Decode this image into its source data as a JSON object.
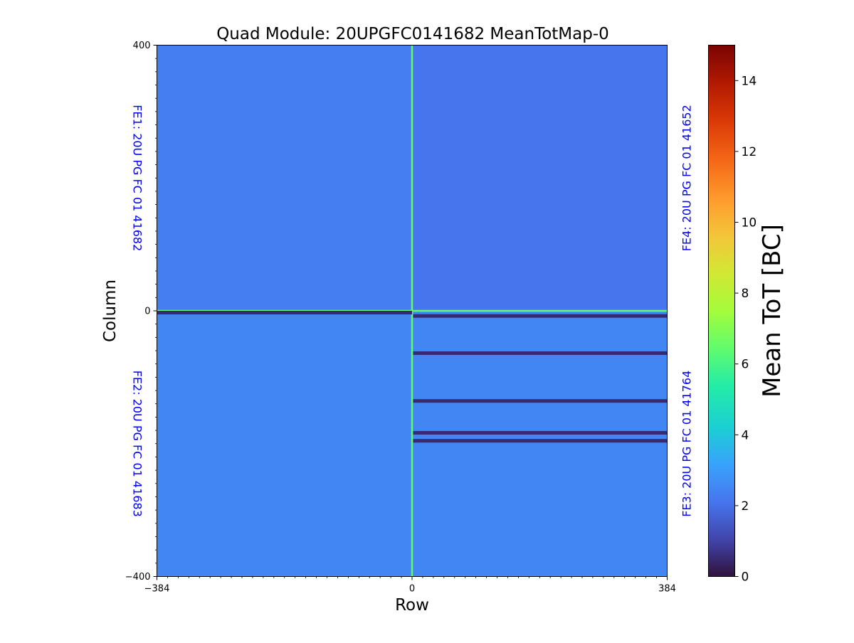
{
  "chart_data": {
    "type": "heatmap",
    "title": "Quad Module: 20UPGFC0141682 MeanTotMap-0",
    "xlabel": "Row",
    "ylabel": "Column",
    "xlim": [
      -384,
      384
    ],
    "ylim": [
      -400,
      400
    ],
    "xticks": [
      {
        "value": -384,
        "label": "−384"
      },
      {
        "value": 0,
        "label": "0"
      },
      {
        "value": 384,
        "label": "384"
      }
    ],
    "yticks": [
      {
        "value": 400,
        "label": "400"
      },
      {
        "value": 0,
        "label": "0"
      },
      {
        "value": -400,
        "label": "−400"
      }
    ],
    "colorbar": {
      "label": "Mean ToT [BC]",
      "min": 0,
      "max": 15,
      "colormap": "turbo",
      "ticks": [
        0,
        2,
        4,
        6,
        8,
        10,
        12,
        14
      ]
    },
    "background_value": 2.2,
    "boundary_value": 6.5,
    "chips": [
      {
        "label": "FE1: 20U PG FC 01 41682",
        "x_range": [
          -384,
          0
        ],
        "y_range": [
          0,
          400
        ],
        "mean_value": 2.3,
        "side": "left"
      },
      {
        "label": "FE2: 20U PG FC 01 41683",
        "x_range": [
          -384,
          0
        ],
        "y_range": [
          -400,
          0
        ],
        "mean_value": 2.5,
        "side": "left"
      },
      {
        "label": "FE3: 20U PG FC 01 41764",
        "x_range": [
          0,
          384
        ],
        "y_range": [
          -400,
          0
        ],
        "mean_value": 2.5,
        "side": "right"
      },
      {
        "label": "FE4: 20U PG FC 01 41652",
        "x_range": [
          0,
          384
        ],
        "y_range": [
          0,
          400
        ],
        "mean_value": 2.1,
        "side": "right"
      }
    ],
    "dead_bands": [
      {
        "x_range": [
          -384,
          0
        ],
        "y_range": [
          -3,
          0
        ],
        "value": 0.5
      },
      {
        "x_range": [
          0,
          384
        ],
        "y_range": [
          -8,
          -5
        ],
        "value": 0.5
      },
      {
        "x_range": [
          0,
          384
        ],
        "y_range": [
          -64,
          -61
        ],
        "value": 0.5
      },
      {
        "x_range": [
          0,
          384
        ],
        "y_range": [
          -136,
          -133
        ],
        "value": 0.5
      },
      {
        "x_range": [
          0,
          384
        ],
        "y_range": [
          -184,
          -181
        ],
        "value": 0.5
      },
      {
        "x_range": [
          0,
          384
        ],
        "y_range": [
          -196,
          -193
        ],
        "value": 0.5
      }
    ]
  }
}
